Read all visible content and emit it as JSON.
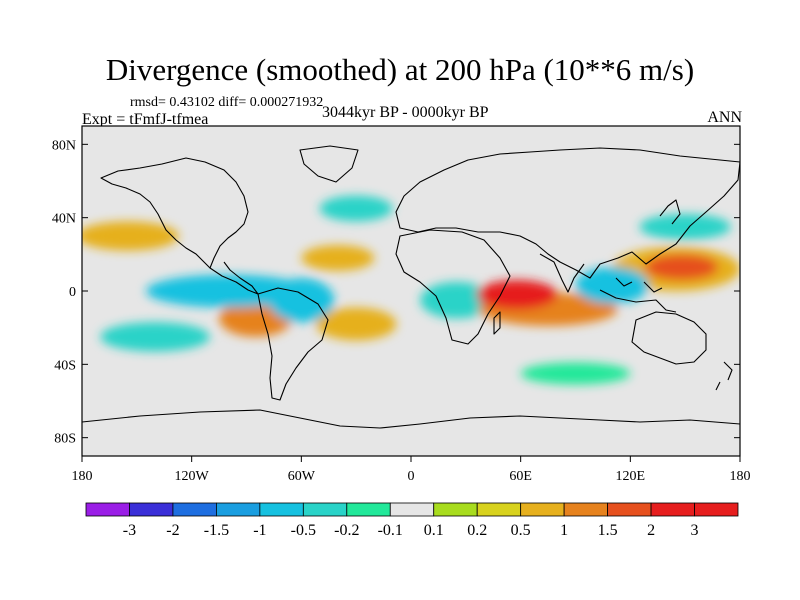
{
  "chart_data": {
    "type": "heatmap",
    "title": "Divergence (smoothed) at 200 hPa (10**6 m/s)",
    "stats_text": "rmsd= 0.43102 diff= 0.000271932",
    "experiment_text": "Expt = tFmfJ-tfmea",
    "period_text": "3044kyr BP - 0000kyr BP",
    "season_text": "ANN",
    "xlim": [
      -180,
      180
    ],
    "ylim": [
      -90,
      90
    ],
    "x_ticks": [
      {
        "value": -180,
        "label": "180"
      },
      {
        "value": -120,
        "label": "120W"
      },
      {
        "value": -60,
        "label": "60W"
      },
      {
        "value": 0,
        "label": "0"
      },
      {
        "value": 60,
        "label": "60E"
      },
      {
        "value": 120,
        "label": "120E"
      },
      {
        "value": 180,
        "label": "180"
      }
    ],
    "y_ticks": [
      {
        "value": 80,
        "label": "80N"
      },
      {
        "value": 40,
        "label": "40N"
      },
      {
        "value": 0,
        "label": "0"
      },
      {
        "value": -40,
        "label": "40S"
      },
      {
        "value": -80,
        "label": "80S"
      }
    ],
    "colorbar": {
      "levels": [
        "-3",
        "-2",
        "-1.5",
        "-1",
        "-0.5",
        "-0.2",
        "-0.1",
        "0.1",
        "0.2",
        "0.5",
        "1",
        "1.5",
        "2",
        "3"
      ],
      "colors": [
        "#9a1ee6",
        "#3b2fd8",
        "#1e6ee0",
        "#1a9ee0",
        "#16c1e0",
        "#29d3c8",
        "#22e89a",
        "#e6e6e6",
        "#a8dc1e",
        "#d8d21e",
        "#e6b01e",
        "#e6821e",
        "#e6501e",
        "#e61e1e",
        "#e61e1e"
      ]
    },
    "features": [
      {
        "name": "indian-ocean-positive-max",
        "lon": 58,
        "lat": -2,
        "rx": 22,
        "ry": 8,
        "value": 3
      },
      {
        "name": "indian-ocean-positive-band",
        "lon": 75,
        "lat": -10,
        "rx": 38,
        "ry": 9,
        "value": 1
      },
      {
        "name": "west-pacific-positive",
        "lon": 148,
        "lat": 13,
        "rx": 20,
        "ry": 7,
        "value": 1.5
      },
      {
        "name": "west-pacific-positive-broad",
        "lon": 145,
        "lat": 12,
        "rx": 35,
        "ry": 12,
        "value": 0.5
      },
      {
        "name": "south-america-positive",
        "lon": -85,
        "lat": -15,
        "rx": 20,
        "ry": 10,
        "value": 1
      },
      {
        "name": "south-atlantic-positive",
        "lon": -30,
        "lat": -18,
        "rx": 22,
        "ry": 9,
        "value": 0.5
      },
      {
        "name": "north-pacific-positive",
        "lon": -155,
        "lat": 30,
        "rx": 28,
        "ry": 8,
        "value": 0.5
      },
      {
        "name": "atlantic-positive",
        "lon": -40,
        "lat": 18,
        "rx": 20,
        "ry": 7,
        "value": 0.5
      },
      {
        "name": "east-pacific-negative",
        "lon": -100,
        "lat": 0,
        "rx": 45,
        "ry": 9,
        "value": -1
      },
      {
        "name": "amazon-negative",
        "lon": -60,
        "lat": -5,
        "rx": 18,
        "ry": 12,
        "value": -1
      },
      {
        "name": "africa-negative",
        "lon": 25,
        "lat": -5,
        "rx": 20,
        "ry": 10,
        "value": -0.5
      },
      {
        "name": "indonesia-negative",
        "lon": 110,
        "lat": 3,
        "rx": 20,
        "ry": 10,
        "value": -1
      },
      {
        "name": "north-pacific-negative",
        "lon": 150,
        "lat": 35,
        "rx": 25,
        "ry": 7,
        "value": -0.5
      },
      {
        "name": "south-pacific-negative",
        "lon": -140,
        "lat": -25,
        "rx": 30,
        "ry": 8,
        "value": -0.5
      },
      {
        "name": "southern-ocean-negative",
        "lon": 90,
        "lat": -45,
        "rx": 30,
        "ry": 6,
        "value": -0.2
      },
      {
        "name": "north-atlantic-negative",
        "lon": -30,
        "lat": 45,
        "rx": 20,
        "ry": 7,
        "value": -0.5
      }
    ]
  }
}
